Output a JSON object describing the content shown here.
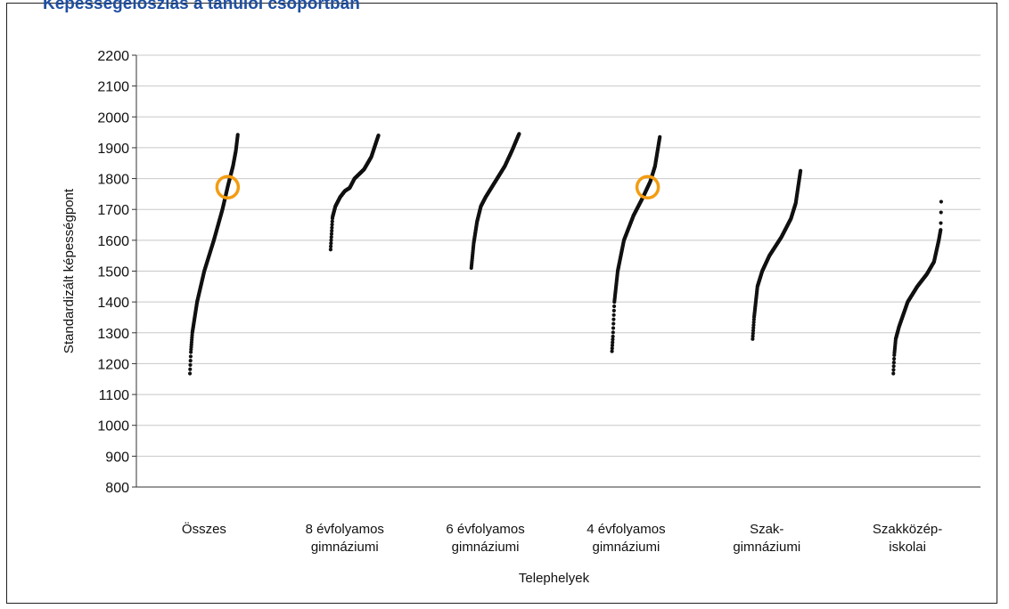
{
  "clipped_title": "Képességeloszlás a tanulói csoportban",
  "chart_data": {
    "type": "scatter",
    "ylabel": "Standardizált képességpont",
    "xlabel": "Telephelyek",
    "ylim": [
      800,
      2200
    ],
    "ytick_step": 100,
    "grid": true,
    "highlight_color": "#f39c12",
    "point_color": "#111111",
    "groups": [
      {
        "label_lines": [
          "Összes"
        ],
        "min": 1168,
        "max": 1942,
        "curve": [
          [
            0,
            1168
          ],
          [
            0.02,
            1240
          ],
          [
            0.05,
            1300
          ],
          [
            0.15,
            1400
          ],
          [
            0.3,
            1500
          ],
          [
            0.5,
            1600
          ],
          [
            0.68,
            1700
          ],
          [
            0.8,
            1780
          ],
          [
            0.9,
            1840
          ],
          [
            0.96,
            1890
          ],
          [
            1,
            1942
          ]
        ],
        "highlight": 1772
      },
      {
        "label_lines": [
          "8 évfolyamos",
          "gimnáziumi"
        ],
        "min": 1570,
        "max": 1940,
        "curve": [
          [
            0,
            1570
          ],
          [
            0.04,
            1675
          ],
          [
            0.1,
            1710
          ],
          [
            0.2,
            1740
          ],
          [
            0.3,
            1760
          ],
          [
            0.4,
            1770
          ],
          [
            0.5,
            1800
          ],
          [
            0.7,
            1830
          ],
          [
            0.85,
            1870
          ],
          [
            1,
            1940
          ]
        ]
      },
      {
        "label_lines": [
          "6 évfolyamos",
          "gimnáziumi"
        ],
        "min": 1510,
        "max": 1945,
        "curve": [
          [
            0,
            1510
          ],
          [
            0.05,
            1590
          ],
          [
            0.12,
            1660
          ],
          [
            0.2,
            1710
          ],
          [
            0.3,
            1740
          ],
          [
            0.5,
            1790
          ],
          [
            0.7,
            1840
          ],
          [
            0.85,
            1890
          ],
          [
            1,
            1945
          ]
        ]
      },
      {
        "label_lines": [
          "4 évfolyamos",
          "gimnáziumi"
        ],
        "min": 1240,
        "max": 1935,
        "curve": [
          [
            0,
            1240
          ],
          [
            0.02,
            1290
          ],
          [
            0.05,
            1400
          ],
          [
            0.12,
            1500
          ],
          [
            0.25,
            1600
          ],
          [
            0.45,
            1680
          ],
          [
            0.65,
            1740
          ],
          [
            0.8,
            1790
          ],
          [
            0.9,
            1840
          ],
          [
            1,
            1935
          ]
        ],
        "highlight": 1772
      },
      {
        "label_lines": [
          "Szak-",
          "gimnáziumi"
        ],
        "min": 1280,
        "max": 1825,
        "curve": [
          [
            0,
            1280
          ],
          [
            0.03,
            1350
          ],
          [
            0.1,
            1450
          ],
          [
            0.2,
            1500
          ],
          [
            0.35,
            1550
          ],
          [
            0.6,
            1610
          ],
          [
            0.8,
            1670
          ],
          [
            0.9,
            1720
          ],
          [
            1,
            1825
          ]
        ]
      },
      {
        "label_lines": [
          "Szakközép-",
          "iskolai"
        ],
        "min": 1168,
        "max": 1725,
        "curve": [
          [
            0,
            1168
          ],
          [
            0.02,
            1230
          ],
          [
            0.05,
            1280
          ],
          [
            0.12,
            1320
          ],
          [
            0.3,
            1400
          ],
          [
            0.5,
            1450
          ],
          [
            0.7,
            1490
          ],
          [
            0.85,
            1530
          ],
          [
            0.95,
            1600
          ],
          [
            0.99,
            1635
          ],
          [
            1,
            1725
          ]
        ]
      }
    ]
  }
}
